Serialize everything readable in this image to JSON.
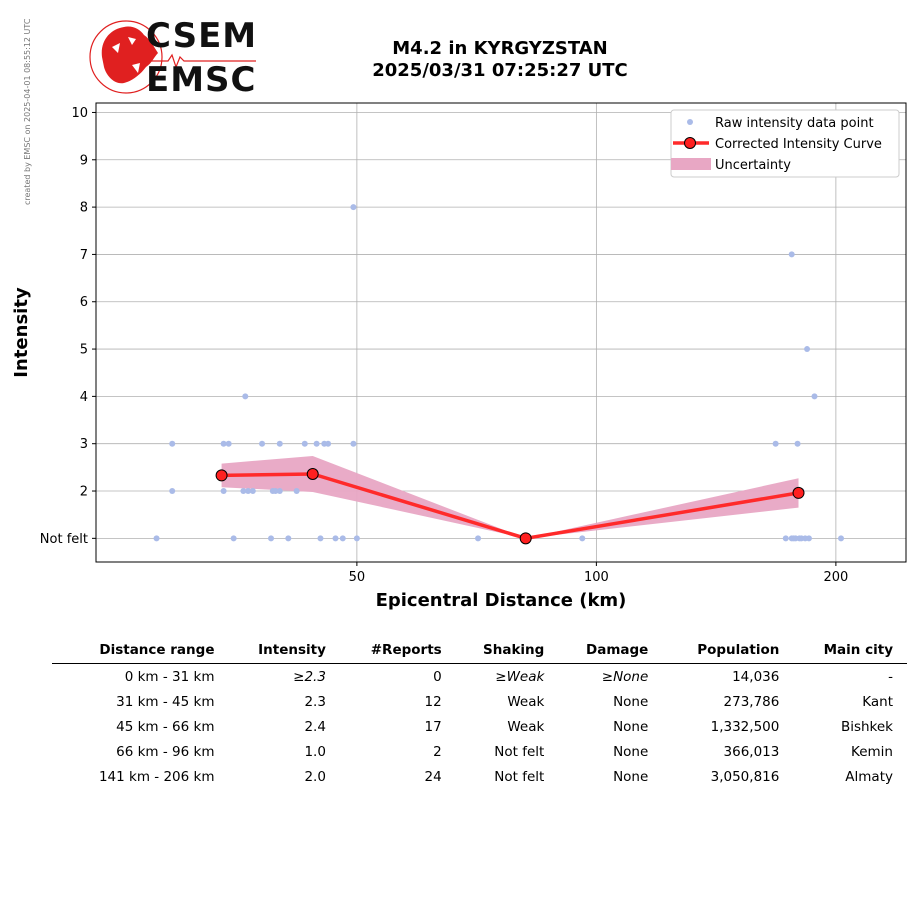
{
  "credit": "created by EMSC on 2025-04-01 08:55:12 UTC",
  "logo": {
    "top": "CSEM",
    "bottom": "EMSC"
  },
  "title": {
    "line1": "M4.2 in KYRGYZSTAN",
    "line2": "2025/03/31 07:25:27 UTC"
  },
  "colors": {
    "raw": "#aabbe8",
    "curve": "#ff2a2a",
    "marker_fill": "#ff2020",
    "uncertainty": "#e8a7c4",
    "logo_red": "#e02020"
  },
  "chart_data": {
    "type": "scatter",
    "xlabel": "Epicentral Distance (km)",
    "ylabel": "Intensity",
    "x_scale": "log",
    "xlim": [
      23.5,
      245
    ],
    "ylim": [
      0.5,
      10.2
    ],
    "xticks": [
      50,
      100,
      200
    ],
    "yticks": [
      1,
      2,
      3,
      4,
      5,
      6,
      7,
      8,
      9,
      10
    ],
    "ytick_labels": [
      "Not felt",
      "2",
      "3",
      "4",
      "5",
      "6",
      "7",
      "8",
      "9",
      "10"
    ],
    "grid": true,
    "legend_position": "top-right",
    "legend": [
      "Raw intensity data point",
      "Corrected Intensity Curve",
      "Uncertainty"
    ],
    "raw_points": [
      [
        28,
        1
      ],
      [
        29.3,
        2
      ],
      [
        29.3,
        3
      ],
      [
        34,
        3
      ],
      [
        34.5,
        3
      ],
      [
        34,
        2
      ],
      [
        35,
        1
      ],
      [
        36,
        2
      ],
      [
        36.5,
        2
      ],
      [
        37,
        2
      ],
      [
        36.2,
        4
      ],
      [
        38,
        3
      ],
      [
        39,
        1
      ],
      [
        39.2,
        2
      ],
      [
        39.5,
        2
      ],
      [
        40,
        3
      ],
      [
        40,
        2
      ],
      [
        41,
        1
      ],
      [
        42,
        2
      ],
      [
        43,
        3
      ],
      [
        44.5,
        3
      ],
      [
        45,
        1
      ],
      [
        45.5,
        3
      ],
      [
        46,
        3
      ],
      [
        49.5,
        8
      ],
      [
        47,
        1
      ],
      [
        49.5,
        3
      ],
      [
        48,
        1
      ],
      [
        50,
        1
      ],
      [
        71,
        1
      ],
      [
        96,
        1
      ],
      [
        168,
        3
      ],
      [
        173,
        1
      ],
      [
        176,
        1
      ],
      [
        177,
        1
      ],
      [
        178,
        1
      ],
      [
        176,
        7
      ],
      [
        179,
        3
      ],
      [
        180,
        1
      ],
      [
        181,
        1
      ],
      [
        181,
        2
      ],
      [
        183,
        1
      ],
      [
        184,
        5
      ],
      [
        188,
        4
      ],
      [
        185,
        1
      ],
      [
        203,
        1
      ]
    ],
    "curve": [
      {
        "x": 33.8,
        "y": 2.33
      },
      {
        "x": 44.0,
        "y": 2.36
      },
      {
        "x": 81.5,
        "y": 1.0
      },
      {
        "x": 179.5,
        "y": 1.96
      }
    ],
    "uncertainty": {
      "x": [
        33.8,
        44.0,
        81.5,
        179.5
      ],
      "lower": [
        2.08,
        1.98,
        1.0,
        1.65
      ],
      "upper": [
        2.58,
        2.74,
        1.0,
        2.27
      ]
    }
  },
  "table": {
    "headers": [
      "Distance range",
      "Intensity",
      "#Reports",
      "Shaking",
      "Damage",
      "Population",
      "Main city"
    ],
    "rows": [
      {
        "range": "0 km -   31 km",
        "intensity": "≥2.3",
        "reports": "0",
        "shaking": "≥Weak",
        "damage": "≥None",
        "population": "14,036",
        "city": "-",
        "italic": true
      },
      {
        "range": "31 km -   45 km",
        "intensity": "2.3",
        "reports": "12",
        "shaking": "Weak",
        "damage": "None",
        "population": "273,786",
        "city": "Kant",
        "italic": false
      },
      {
        "range": "45 km -   66 km",
        "intensity": "2.4",
        "reports": "17",
        "shaking": "Weak",
        "damage": "None",
        "population": "1,332,500",
        "city": "Bishkek",
        "italic": false
      },
      {
        "range": "66 km -   96 km",
        "intensity": "1.0",
        "reports": "2",
        "shaking": "Not felt",
        "damage": "None",
        "population": "366,013",
        "city": "Kemin",
        "italic": false
      },
      {
        "range": "141 km -  206 km",
        "intensity": "2.0",
        "reports": "24",
        "shaking": "Not felt",
        "damage": "None",
        "population": "3,050,816",
        "city": "Almaty",
        "italic": false
      }
    ]
  }
}
